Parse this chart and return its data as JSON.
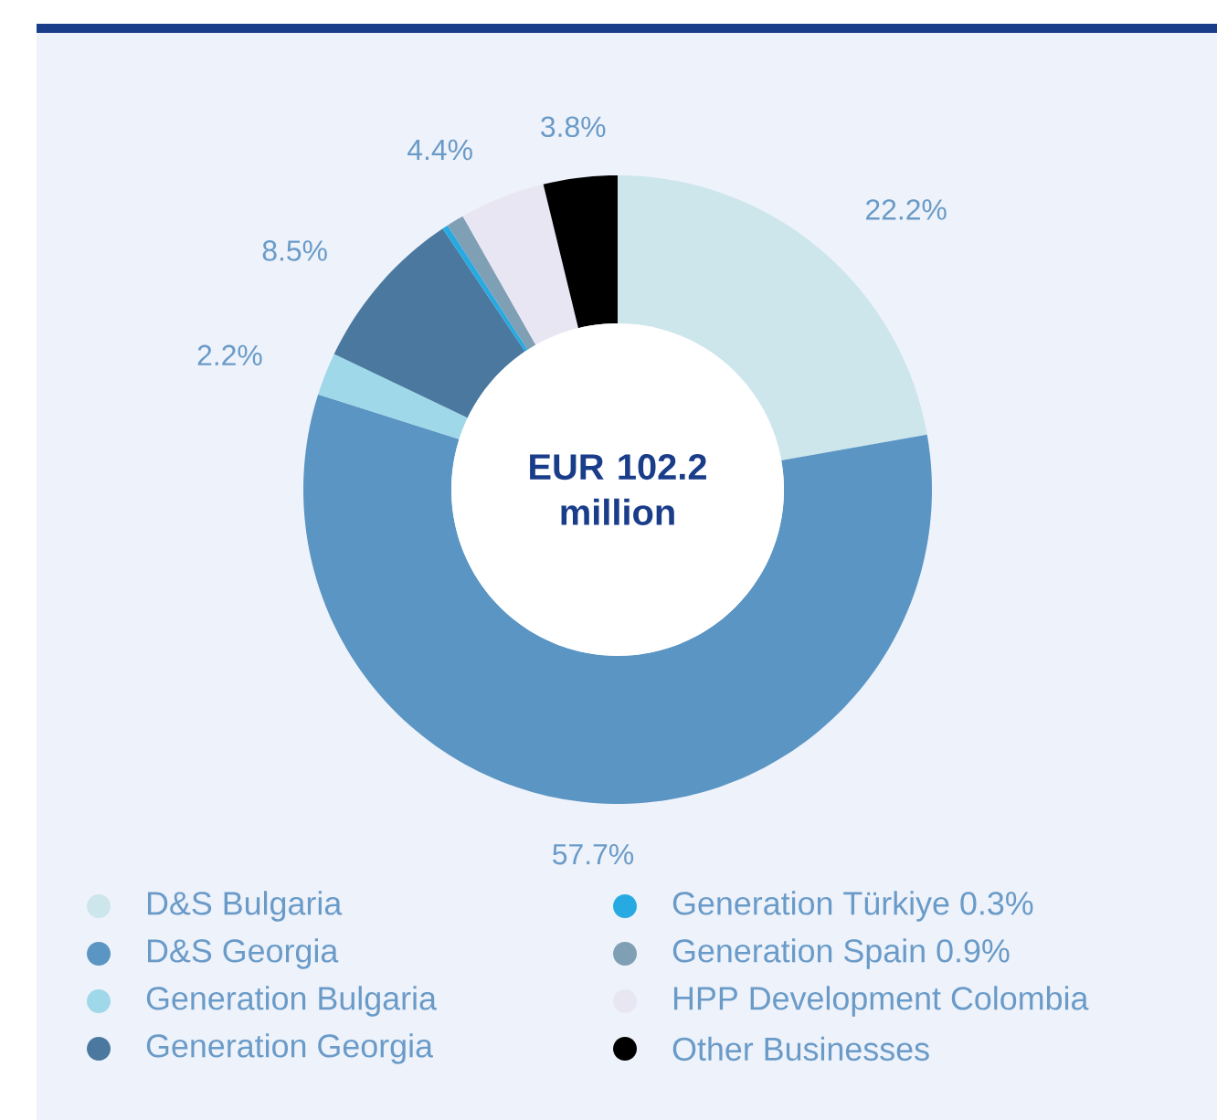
{
  "chart_data": {
    "type": "donut",
    "title": "EUR 102.2 million",
    "categories": [
      "D&S Bulgaria",
      "D&S Georgia",
      "Generation Bulgaria",
      "Generation Georgia",
      "Generation Türkiye 0.3%",
      "Generation Spain 0.9%",
      "HPP Development Colombia",
      "Other Businesses"
    ],
    "values": [
      22.2,
      57.7,
      2.2,
      8.5,
      0.3,
      0.9,
      4.4,
      3.8
    ],
    "colors": [
      "#cce6ec",
      "#5a95c4",
      "#9fd8e8",
      "#4a789e",
      "#27aae1",
      "#7f9fb4",
      "#e8e6f2",
      "#000000"
    ],
    "value_labels": [
      "22.2%",
      "57.7%",
      "2.2%",
      "8.5%",
      null,
      null,
      "4.4%",
      "3.8%"
    ],
    "legend": "bottom"
  }
}
